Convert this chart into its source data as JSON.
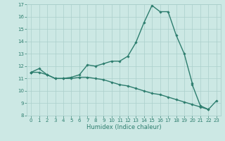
{
  "xlabel": "Humidex (Indice chaleur)",
  "x": [
    0,
    1,
    2,
    3,
    4,
    5,
    6,
    7,
    8,
    9,
    10,
    11,
    12,
    13,
    14,
    15,
    16,
    17,
    18,
    19,
    20,
    21,
    22,
    23
  ],
  "line1": [
    11.5,
    11.8,
    11.3,
    11.0,
    11.0,
    11.1,
    11.3,
    12.1,
    12.0,
    12.2,
    12.4,
    12.4,
    12.8,
    13.9,
    15.5,
    16.9,
    16.4,
    16.4,
    14.5,
    13.0,
    10.6,
    null,
    null,
    null
  ],
  "line2": [
    11.5,
    11.5,
    11.3,
    11.0,
    11.0,
    11.0,
    11.1,
    11.1,
    11.0,
    10.9,
    10.7,
    10.5,
    10.4,
    10.2,
    10.0,
    9.8,
    9.7,
    9.5,
    9.3,
    9.1,
    8.9,
    8.7,
    8.5,
    null
  ],
  "line3": [
    11.5,
    null,
    null,
    null,
    null,
    null,
    null,
    null,
    null,
    null,
    null,
    null,
    null,
    null,
    null,
    null,
    null,
    null,
    null,
    null,
    10.5,
    8.8,
    8.5,
    9.2
  ],
  "ylim": [
    8,
    17
  ],
  "yticks": [
    8,
    9,
    10,
    11,
    12,
    13,
    14,
    15,
    16,
    17
  ],
  "xticks": [
    0,
    1,
    2,
    3,
    4,
    5,
    6,
    7,
    8,
    9,
    10,
    11,
    12,
    13,
    14,
    15,
    16,
    17,
    18,
    19,
    20,
    21,
    22,
    23
  ],
  "line_color": "#2d7d6e",
  "bg_color": "#cce8e4",
  "grid_color": "#aacfcb",
  "marker": "D",
  "marker_size": 1.8,
  "linewidth": 1.0,
  "tick_fontsize": 5.0,
  "xlabel_fontsize": 6.0
}
